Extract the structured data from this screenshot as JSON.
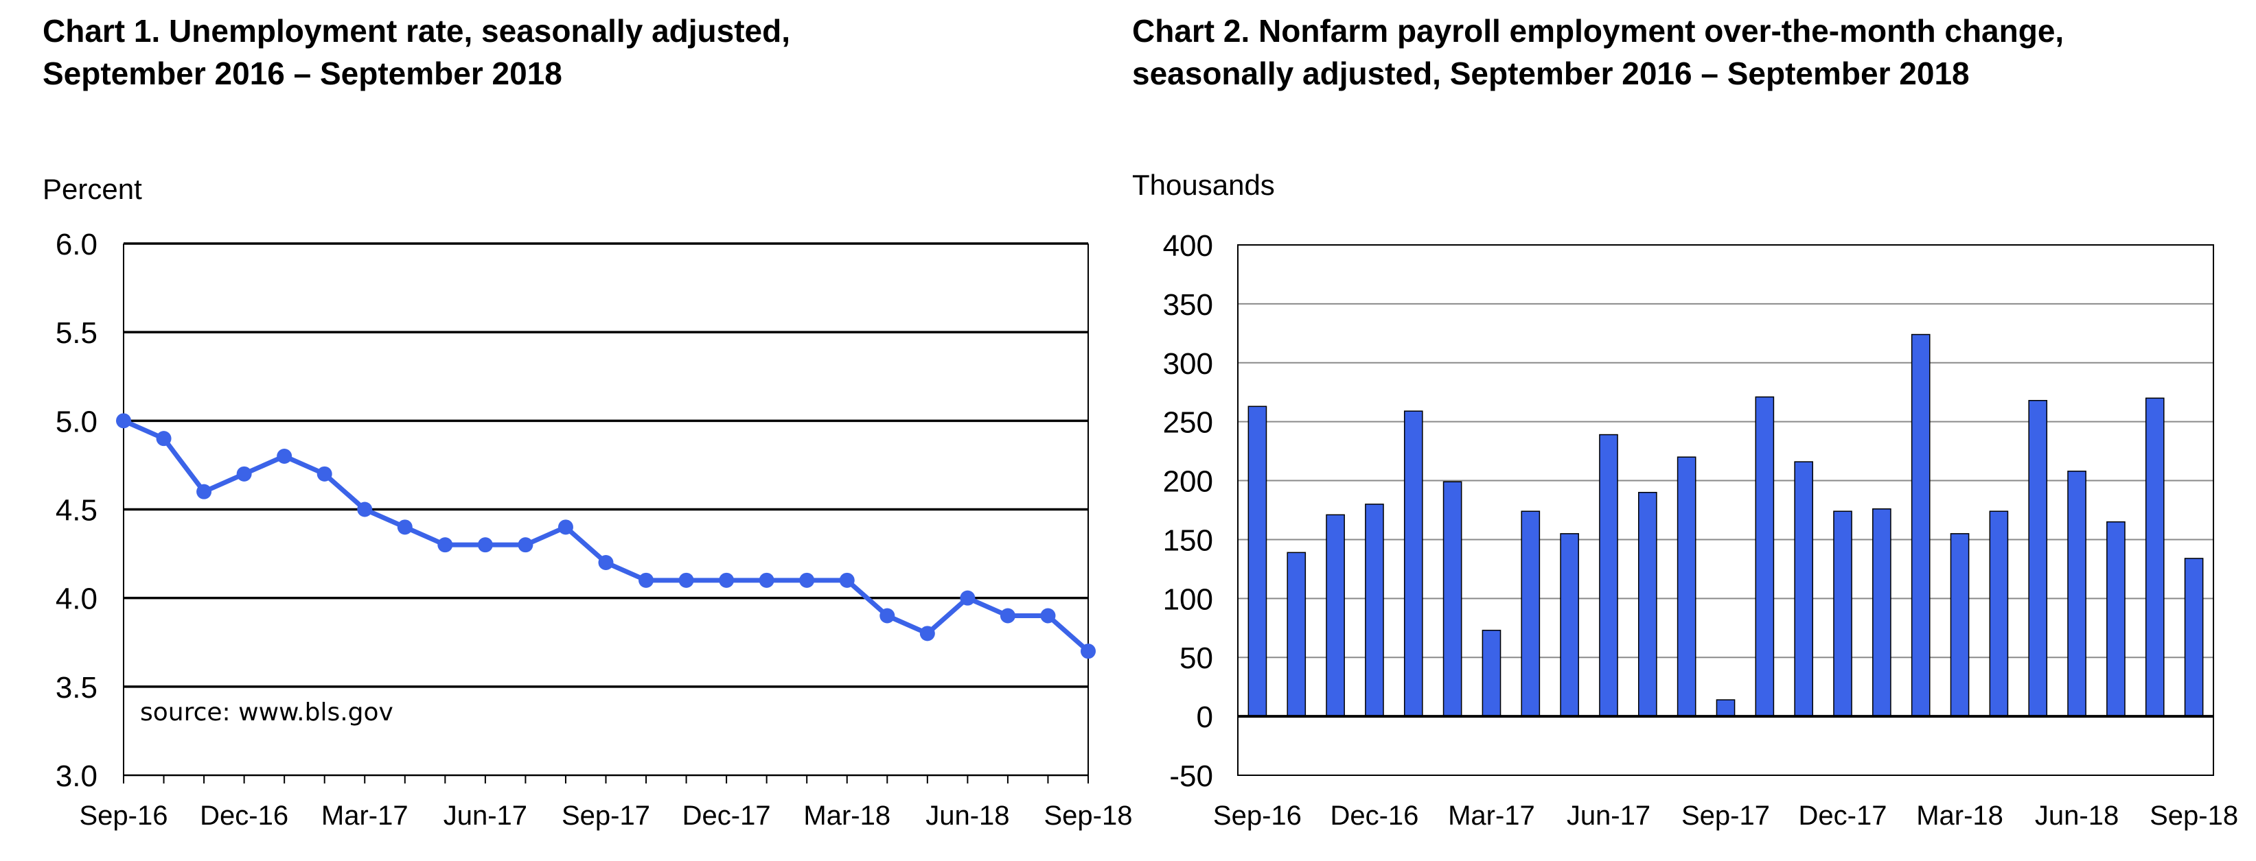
{
  "chart_data": [
    {
      "type": "line",
      "title_lines": [
        "Chart 1. Unemployment rate, seasonally adjusted,",
        "September 2016 – September 2018"
      ],
      "ylabel": "Percent",
      "xlabel": "",
      "ylim": [
        3.0,
        6.0
      ],
      "yticks": [
        "6.0",
        "5.5",
        "5.0",
        "4.5",
        "4.0",
        "3.5",
        "3.0"
      ],
      "grid": true,
      "annotation": "source: www.bls.gov",
      "color": "#3B63E8",
      "x": [
        "Sep-16",
        "Oct-16",
        "Nov-16",
        "Dec-16",
        "Jan-17",
        "Feb-17",
        "Mar-17",
        "Apr-17",
        "May-17",
        "Jun-17",
        "Jul-17",
        "Aug-17",
        "Sep-17",
        "Oct-17",
        "Nov-17",
        "Dec-17",
        "Jan-18",
        "Feb-18",
        "Mar-18",
        "Apr-18",
        "May-18",
        "Jun-18",
        "Jul-18",
        "Aug-18",
        "Sep-18"
      ],
      "xtick_labels": [
        "Sep-16",
        "Dec-16",
        "Mar-17",
        "Jun-17",
        "Sep-17",
        "Dec-17",
        "Mar-18",
        "Jun-18",
        "Sep-18"
      ],
      "values": [
        5.0,
        4.9,
        4.6,
        4.7,
        4.8,
        4.7,
        4.5,
        4.4,
        4.3,
        4.3,
        4.3,
        4.4,
        4.2,
        4.1,
        4.1,
        4.1,
        4.1,
        4.1,
        4.1,
        3.9,
        3.8,
        4.0,
        3.9,
        3.9,
        3.7
      ]
    },
    {
      "type": "bar",
      "title_lines": [
        "Chart 2. Nonfarm payroll employment over-the-month change,",
        "seasonally adjusted, September 2016 – September 2018"
      ],
      "ylabel": "Thousands",
      "xlabel": "",
      "ylim": [
        -50,
        400
      ],
      "yticks": [
        "400",
        "350",
        "300",
        "250",
        "200",
        "150",
        "100",
        "50",
        "0",
        "-50"
      ],
      "grid": true,
      "color": "#3B63E8",
      "x": [
        "Sep-16",
        "Oct-16",
        "Nov-16",
        "Dec-16",
        "Jan-17",
        "Feb-17",
        "Mar-17",
        "Apr-17",
        "May-17",
        "Jun-17",
        "Jul-17",
        "Aug-17",
        "Sep-17",
        "Oct-17",
        "Nov-17",
        "Dec-17",
        "Jan-18",
        "Feb-18",
        "Mar-18",
        "Apr-18",
        "May-18",
        "Jun-18",
        "Jul-18",
        "Aug-18",
        "Sep-18"
      ],
      "xtick_labels": [
        "Sep-16",
        "Dec-16",
        "Mar-17",
        "Jun-17",
        "Sep-17",
        "Dec-17",
        "Mar-18",
        "Jun-18",
        "Sep-18"
      ],
      "values": [
        263,
        139,
        171,
        180,
        259,
        199,
        73,
        174,
        155,
        239,
        190,
        220,
        14,
        271,
        216,
        174,
        176,
        324,
        155,
        174,
        268,
        208,
        165,
        270,
        134
      ]
    }
  ]
}
